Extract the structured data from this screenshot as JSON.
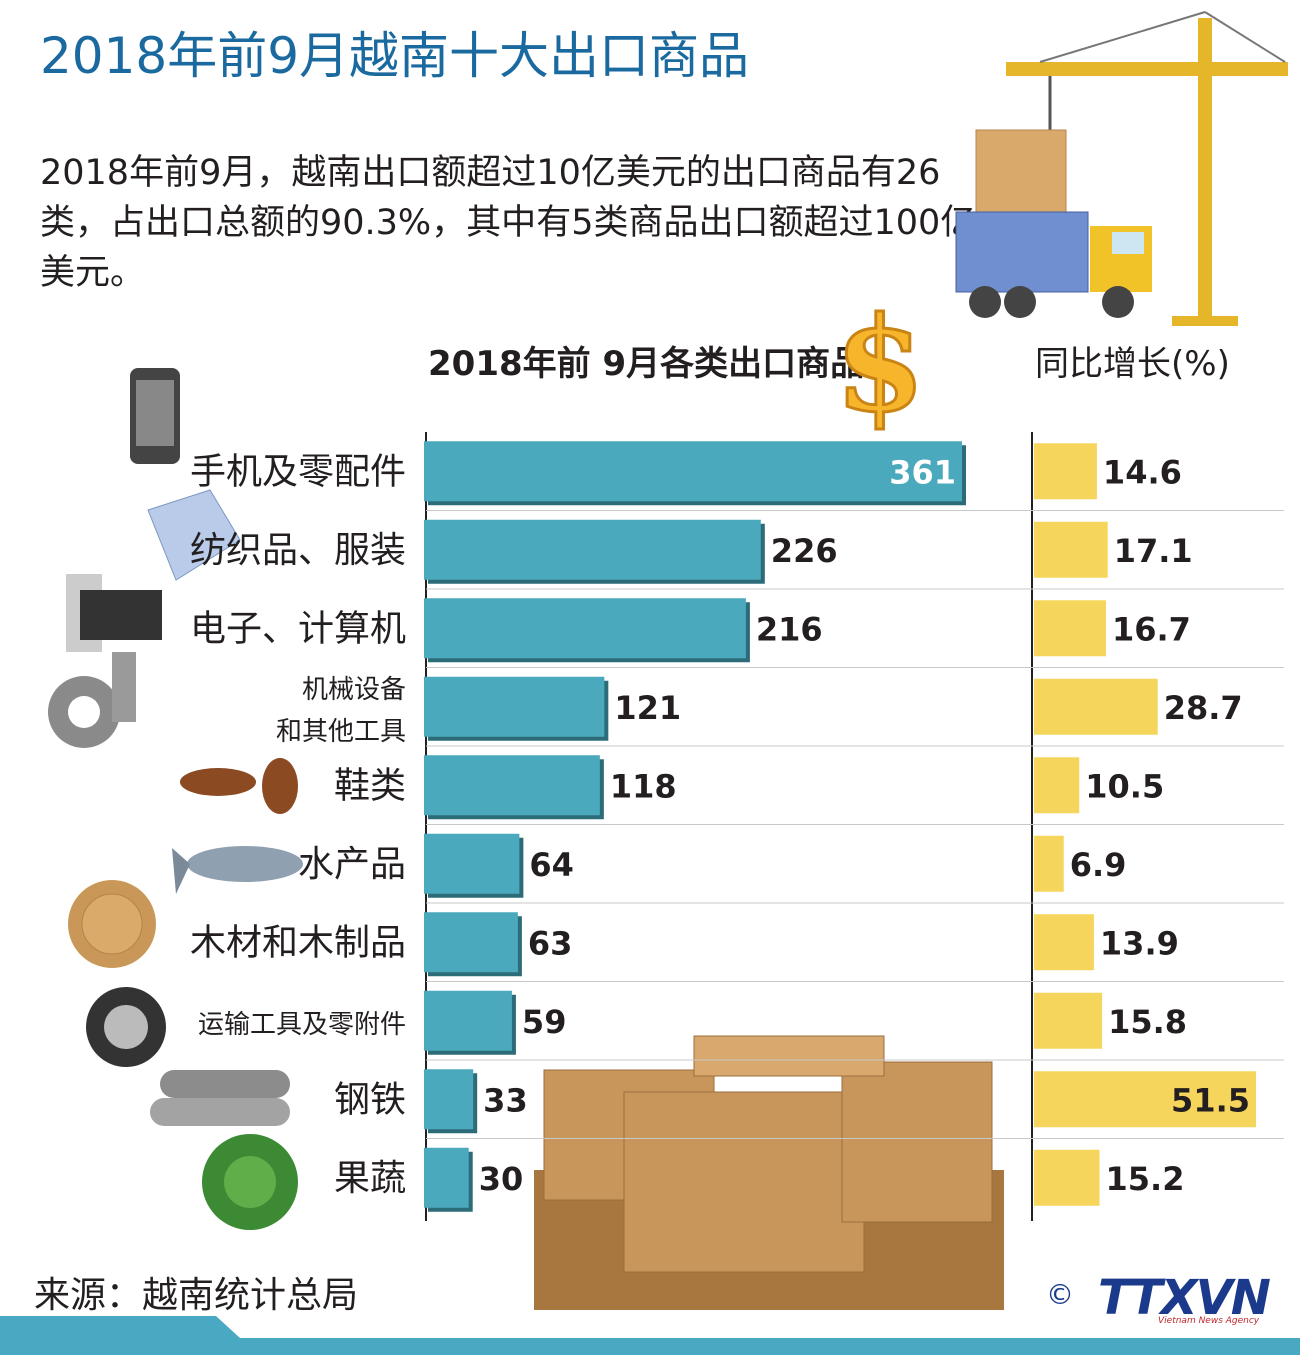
{
  "title": "2018年前9月越南十大出口商品",
  "intro": "2018年前9月，越南出口额超过10亿美元的出口商品有26类，占出口总额的90.3%，其中有5类商品出口额超过100亿美元。",
  "source": "来源：越南统计总局",
  "copyright": "©",
  "logo": "TTXVN",
  "logo_sub": "Vietnam News Agency",
  "colors": {
    "export_bar": "#4aa9bc",
    "growth_bar": "#f6d55c",
    "title": "#1a6aa0"
  },
  "chart_data": {
    "type": "bar",
    "orientation": "horizontal",
    "categories": [
      "手机及零配件",
      "纺织品、服装",
      "电子、计算机",
      "机械设备\n和其他工具",
      "鞋类",
      "水产品",
      "木材和木制品",
      "运输工具及零附件",
      "钢铁",
      "果蔬"
    ],
    "series": [
      {
        "name": "2018年前 9月各类出口商品",
        "values": [
          361,
          226,
          216,
          121,
          118,
          64,
          63,
          59,
          33,
          30
        ]
      },
      {
        "name": "同比增长(%)",
        "values": [
          14.6,
          17.1,
          16.7,
          28.7,
          10.5,
          6.9,
          13.9,
          15.8,
          51.5,
          15.2
        ]
      }
    ],
    "value_labels_export": [
      "361",
      "226",
      "216",
      "121",
      "118",
      "64",
      "63",
      "59",
      "33",
      "30"
    ],
    "value_labels_growth": [
      "14.6",
      "17.1",
      "16.7",
      "28.7",
      "10.5",
      "6.9",
      "13.9",
      "15.8",
      "51.5",
      "15.2"
    ],
    "export_max": 361,
    "growth_max": 51.5
  },
  "icons": [
    "phone-icon",
    "shirt-icon",
    "computer-icon",
    "gear-icon",
    "shoe-icon",
    "fish-icon",
    "wood-icon",
    "tire-icon",
    "steel-pipe-icon",
    "cabbage-icon",
    "dollar-icon",
    "crane-icon",
    "truck-icon",
    "box-icon"
  ]
}
